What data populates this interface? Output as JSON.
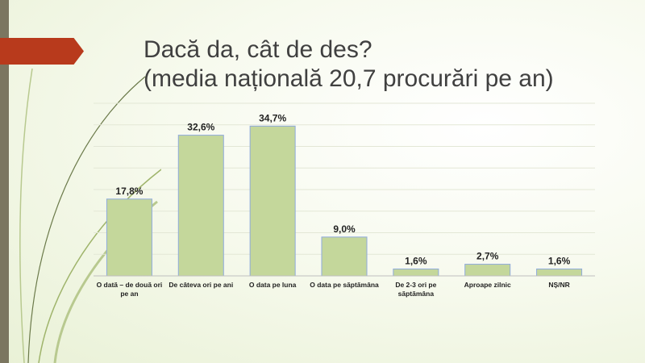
{
  "title": {
    "line1": "Dacă da, cât de des?",
    "line2": "(media națională 20,7 procurări pe an)"
  },
  "colors": {
    "bar_fill": "#c4d79b",
    "bar_stroke": "#8faadc",
    "accent_tab": "#b83a1c",
    "left_bar": "#7b7660",
    "gridline": "#e3e7d6"
  },
  "chart_data": {
    "type": "bar",
    "categories": [
      [
        "O dată – de două ori",
        "pe an"
      ],
      [
        "De câteva ori pe ani"
      ],
      [
        "O data pe luna"
      ],
      [
        "O data pe săptămâna"
      ],
      [
        "De 2-3 ori pe",
        "săptămâna"
      ],
      [
        "Aproape zilnic"
      ],
      [
        "NȘ/NR"
      ]
    ],
    "values": [
      17.8,
      32.6,
      34.7,
      9.0,
      1.6,
      2.7,
      1.6
    ],
    "data_labels": [
      "17,8%",
      "32,6%",
      "34,7%",
      "9,0%",
      "1,6%",
      "2,7%",
      "1,6%"
    ],
    "ylim": [
      0,
      40
    ],
    "grid": true,
    "legend": "none"
  }
}
